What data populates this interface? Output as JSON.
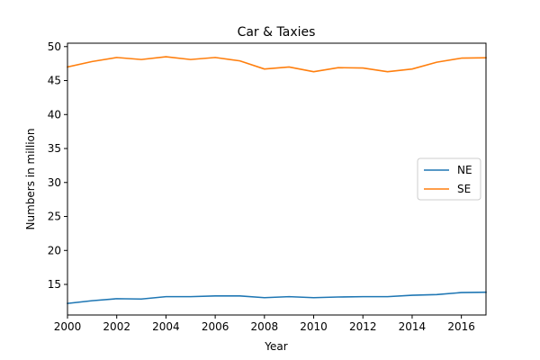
{
  "chart_data": {
    "type": "line",
    "title": "Car & Taxies",
    "xlabel": "Year",
    "ylabel": "Numbers in million",
    "xlim": [
      2000,
      2017
    ],
    "ylim": [
      10.5,
      50.5
    ],
    "xticks": [
      2000,
      2002,
      2004,
      2006,
      2008,
      2010,
      2012,
      2014,
      2016
    ],
    "yticks": [
      15,
      20,
      25,
      30,
      35,
      40,
      45,
      50
    ],
    "grid": false,
    "legend_position": "center-right",
    "x": [
      2000,
      2001,
      2002,
      2003,
      2004,
      2005,
      2006,
      2007,
      2008,
      2009,
      2010,
      2011,
      2012,
      2013,
      2014,
      2015,
      2016,
      2017
    ],
    "series": [
      {
        "name": "NE",
        "color": "#1f77b4",
        "values": [
          12.2,
          12.6,
          12.9,
          12.85,
          13.2,
          13.2,
          13.3,
          13.3,
          13.05,
          13.2,
          13.05,
          13.15,
          13.2,
          13.2,
          13.4,
          13.5,
          13.8,
          13.85
        ]
      },
      {
        "name": "SE",
        "color": "#ff7f0e",
        "values": [
          47.0,
          47.8,
          48.4,
          48.1,
          48.5,
          48.1,
          48.4,
          47.9,
          46.7,
          47.0,
          46.3,
          46.9,
          46.85,
          46.3,
          46.7,
          47.7,
          48.3,
          48.35
        ]
      }
    ]
  }
}
